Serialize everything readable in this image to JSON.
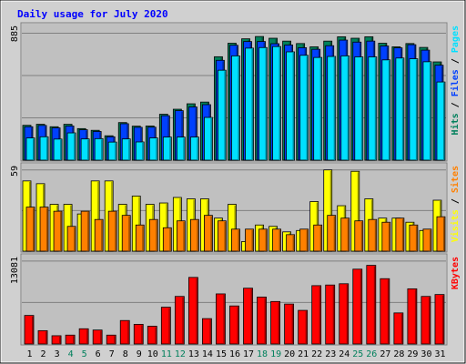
{
  "chart_data": {
    "type": "bar",
    "title": "Daily usage for July 2020",
    "days": [
      "1",
      "2",
      "3",
      "4",
      "5",
      "6",
      "7",
      "8",
      "9",
      "10",
      "11",
      "12",
      "13",
      "14",
      "15",
      "16",
      "17",
      "18",
      "19",
      "20",
      "21",
      "22",
      "23",
      "24",
      "25",
      "26",
      "27",
      "28",
      "29",
      "30",
      "31"
    ],
    "weekend_days": [
      "4",
      "5",
      "11",
      "12",
      "18",
      "19",
      "25",
      "26"
    ],
    "colors": {
      "title": "#0000ff",
      "day_label": "#000000",
      "weekend_label": "#00805c",
      "hits": "#00805c",
      "files": "#0040ff",
      "pages": "#00e0ff",
      "visits": "#ffff00",
      "sites": "#ff8000",
      "kbytes": "#ff0000",
      "plot_background": "#c0c0c0",
      "frame_background": "#d0d0d0"
    },
    "panels": [
      {
        "id": "hits_files_pages",
        "max_label": "885",
        "ylim": [
          0,
          885
        ],
        "legend": [
          {
            "label": "Pages",
            "color_key": "pages"
          },
          {
            "label": "Files",
            "color_key": "files"
          },
          {
            "label": "Hits",
            "color_key": "hits"
          }
        ],
        "series": [
          {
            "name": "Hits",
            "color_key": "hits",
            "values": [
              243,
              250,
              233,
              250,
              220,
              208,
              170,
              262,
              237,
              238,
              320,
              355,
              393,
              405,
              721,
              815,
              846,
              862,
              850,
              830,
              813,
              790,
              830,
              860,
              850,
              860,
              815,
              790,
              813,
              786,
              685
            ]
          },
          {
            "name": "Files",
            "color_key": "files",
            "values": [
              233,
              242,
              225,
              238,
              212,
              200,
              163,
              254,
              229,
              230,
              310,
              345,
              371,
              387,
              696,
              801,
              827,
              827,
              812,
              803,
              784,
              773,
              798,
              837,
              823,
              830,
              796,
              783,
              805,
              767,
              662
            ]
          },
          {
            "name": "Pages",
            "color_key": "pages",
            "values": [
              155,
              163,
              147,
              190,
              148,
              150,
              126,
              148,
              127,
              155,
              161,
              161,
              161,
              298,
              627,
              727,
              781,
              785,
              792,
              755,
              731,
              716,
              723,
              727,
              720,
              720,
              699,
              712,
              707,
              686,
              545
            ]
          }
        ]
      },
      {
        "id": "visits_sites",
        "max_label": "59",
        "ylim": [
          0,
          59
        ],
        "legend": [
          {
            "label": "Sites",
            "color_key": "sites"
          },
          {
            "label": "Visits",
            "color_key": "visits"
          }
        ],
        "series": [
          {
            "name": "Visits",
            "color_key": "visits",
            "values": [
              51,
              49,
              34,
              34,
              27,
              51,
              51,
              34,
              40,
              34,
              35,
              39,
              38,
              38,
              24,
              34,
              7,
              19,
              18,
              14,
              15,
              36,
              59,
              33,
              58,
              38,
              24,
              24,
              21,
              15,
              37
            ]
          },
          {
            "name": "Sites",
            "color_key": "sites",
            "values": [
              32,
              32,
              29,
              18,
              29,
              23,
              29,
              26,
              19,
              23,
              17,
              22,
              23,
              26,
              22,
              16,
              16,
              16,
              16,
              12,
              16,
              19,
              26,
              24,
              22,
              23,
              21,
              24,
              19,
              16,
              25
            ]
          }
        ]
      },
      {
        "id": "kbytes",
        "max_label": "13081",
        "ylim": [
          0,
          13081
        ],
        "legend": [
          {
            "label": "KBytes",
            "color_key": "kbytes"
          }
        ],
        "series": [
          {
            "name": "KBytes",
            "color_key": "kbytes",
            "values": [
              4500,
              2100,
              1300,
              1400,
              2400,
              2200,
              1400,
              3700,
              3100,
              2800,
              5800,
              7500,
              10500,
              4000,
              7900,
              6000,
              8800,
              7400,
              6700,
              6300,
              5300,
              9200,
              9300,
              9500,
              11800,
              12400,
              10300,
              4900,
              8700,
              7500,
              7800
            ]
          }
        ]
      }
    ]
  }
}
